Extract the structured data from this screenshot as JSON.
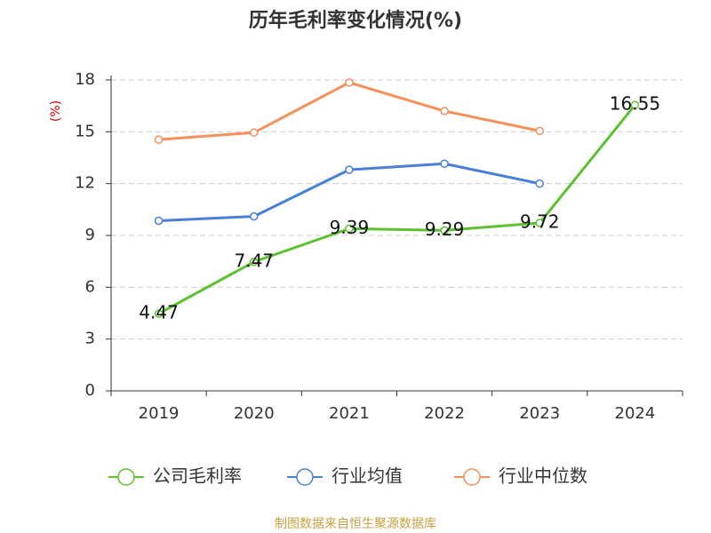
{
  "chart_data": {
    "type": "line",
    "title": "历年毛利率变化情况(%)",
    "y_label": "(%)",
    "categories": [
      "2019",
      "2020",
      "2021",
      "2022",
      "2023",
      "2024"
    ],
    "series": [
      {
        "name": "公司毛利率",
        "color": "#5cc12e",
        "values": [
          4.47,
          7.47,
          9.39,
          9.29,
          9.72,
          16.55
        ],
        "show_labels": true
      },
      {
        "name": "行业均值",
        "color": "#4a7fd9",
        "values": [
          9.85,
          10.1,
          12.8,
          13.15,
          12.0,
          null
        ]
      },
      {
        "name": "行业中位数",
        "color": "#f5905a",
        "values": [
          14.55,
          14.95,
          17.85,
          16.2,
          15.05,
          null
        ]
      }
    ],
    "ylim": [
      0,
      18
    ],
    "yticks": [
      0,
      3,
      6,
      9,
      12,
      15,
      18
    ],
    "grid": true,
    "source": "制图数据来自恒生聚源数据库"
  }
}
